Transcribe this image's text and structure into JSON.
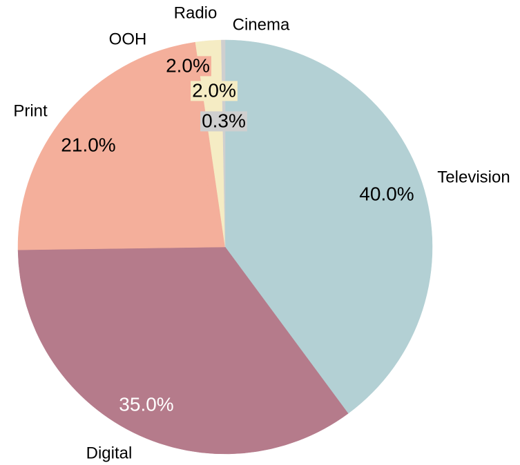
{
  "chart_data": {
    "type": "pie",
    "categories": [
      "Television",
      "Digital",
      "Print",
      "OOH",
      "Radio",
      "Cinema"
    ],
    "values": [
      40,
      35,
      21,
      2,
      2,
      0.3
    ],
    "value_labels": [
      "40.0%",
      "35.0%",
      "21.0%",
      "2.0%",
      "2.0%",
      "0.3%"
    ],
    "colors": [
      "#b3d0d4",
      "#b57b8b",
      "#f4af9b",
      "#f4af9b",
      "#f5ecc4",
      "#cfcfcf"
    ]
  }
}
